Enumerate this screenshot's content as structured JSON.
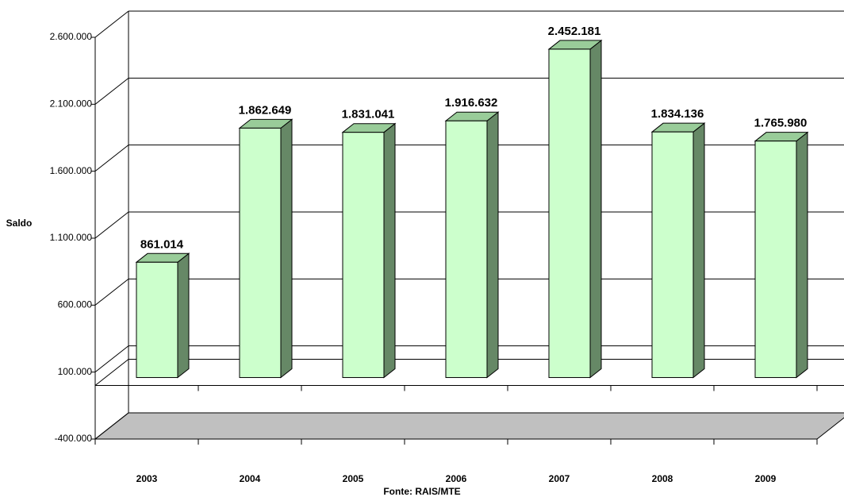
{
  "chart_data": {
    "type": "bar3d",
    "y_label": "Saldo",
    "source": "Fonte: RAIS/MTE",
    "categories": [
      "2003",
      "2004",
      "2005",
      "2006",
      "2007",
      "2008",
      "2009"
    ],
    "values": [
      861014,
      1862649,
      1831041,
      1916632,
      2452181,
      1834136,
      1765980
    ],
    "value_labels": [
      "861.014",
      "1.862.649",
      "1.831.041",
      "1.916.632",
      "2.452.181",
      "1.834.136",
      "1.765.980"
    ],
    "color": "#ccffcc",
    "ylim": [
      -400000,
      2600000
    ],
    "yticks": [
      {
        "value": -400000,
        "label": "-400.000"
      },
      {
        "value": 100000,
        "label": "100.000"
      },
      {
        "value": 600000,
        "label": "600.000"
      },
      {
        "value": 1100000,
        "label": "1.100.000"
      },
      {
        "value": 1600000,
        "label": "1.600.000"
      },
      {
        "value": 2100000,
        "label": "2.100.000"
      },
      {
        "value": 2600000,
        "label": "2.600.000"
      }
    ],
    "grid": true
  }
}
